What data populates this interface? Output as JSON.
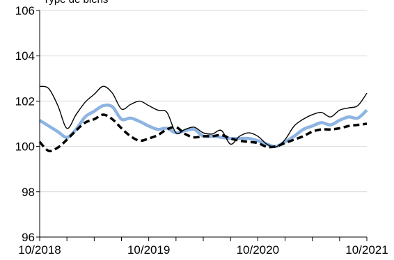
{
  "chart_data": {
    "type": "line",
    "title": "",
    "ylabel": "Type de biens",
    "xlabel": "",
    "ylim": [
      96,
      106
    ],
    "yticks": [
      96,
      98,
      100,
      102,
      104,
      106
    ],
    "xlim": [
      "2018-10",
      "2021-10"
    ],
    "xticks": [
      "10/2018",
      "10/2019",
      "10/2020",
      "10/2021"
    ],
    "x_minor_ticks_per_year": 4,
    "grid": true,
    "legend": "none",
    "x": [
      "2018-10",
      "2018-11",
      "2018-12",
      "2019-01",
      "2019-02",
      "2019-03",
      "2019-04",
      "2019-05",
      "2019-06",
      "2019-07",
      "2019-08",
      "2019-09",
      "2019-10",
      "2019-11",
      "2019-12",
      "2020-01",
      "2020-02",
      "2020-03",
      "2020-04",
      "2020-05",
      "2020-06",
      "2020-07",
      "2020-08",
      "2020-09",
      "2020-10",
      "2020-11",
      "2020-12",
      "2021-01",
      "2021-02",
      "2021-03",
      "2021-04",
      "2021-05",
      "2021-06",
      "2021-07",
      "2021-08",
      "2021-09",
      "2021-10"
    ],
    "series": [
      {
        "style": "thin-black-solid",
        "color": "#000000",
        "values": [
          102.65,
          102.55,
          101.8,
          100.8,
          101.4,
          101.95,
          102.3,
          102.65,
          102.35,
          101.65,
          101.85,
          102.0,
          101.8,
          101.6,
          101.5,
          100.6,
          100.75,
          100.85,
          100.6,
          100.55,
          100.7,
          100.1,
          100.45,
          100.6,
          100.45,
          100.1,
          99.98,
          100.3,
          100.9,
          101.2,
          101.4,
          101.5,
          101.3,
          101.6,
          101.7,
          101.8,
          102.35
        ]
      },
      {
        "style": "thick-blue-solid",
        "color": "#8db4e2",
        "values": [
          101.15,
          100.9,
          100.65,
          100.4,
          100.75,
          101.3,
          101.55,
          101.8,
          101.75,
          101.2,
          101.25,
          101.1,
          100.9,
          100.75,
          100.8,
          100.6,
          100.7,
          100.75,
          100.45,
          100.45,
          100.4,
          100.35,
          100.35,
          100.35,
          100.25,
          100.1,
          100.0,
          100.2,
          100.45,
          100.75,
          100.9,
          101.05,
          100.95,
          101.15,
          101.3,
          101.25,
          101.6
        ]
      },
      {
        "style": "thick-black-dashed",
        "color": "#000000",
        "values": [
          100.2,
          99.8,
          99.95,
          100.3,
          100.7,
          101.05,
          101.2,
          101.4,
          101.2,
          100.8,
          100.45,
          100.25,
          100.35,
          100.5,
          100.75,
          100.85,
          100.55,
          100.4,
          100.45,
          100.45,
          100.5,
          100.35,
          100.25,
          100.2,
          100.15,
          99.98,
          100.0,
          100.15,
          100.3,
          100.45,
          100.65,
          100.75,
          100.75,
          100.8,
          100.9,
          100.95,
          101.0
        ]
      }
    ]
  }
}
